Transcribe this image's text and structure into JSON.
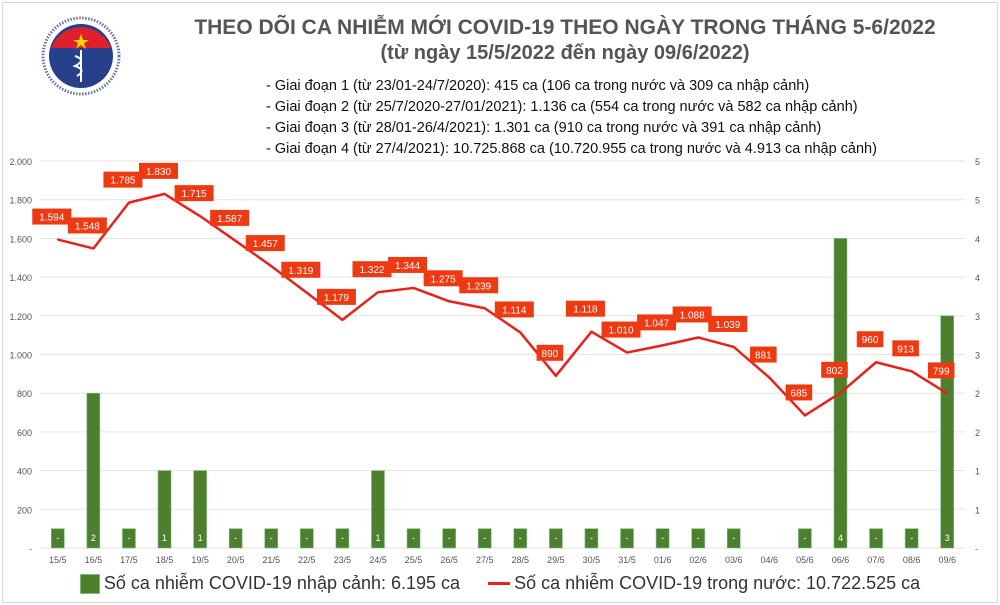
{
  "header": {
    "logo_text_top": "BỘ Y TẾ",
    "logo_text_bottom": "MINISTRY OF HEALTH",
    "title": "THEO DÕI CA NHIỄM MỚI COVID-19 THEO NGÀY TRONG THÁNG 5-6/2022",
    "subtitle": "(từ ngày 15/5/2022 đến ngày 09/6/2022)",
    "notes": [
      "- Giai đoạn 1 (từ 23/01-24/7/2020): 415 ca (106 ca trong nước và 309 ca nhập cảnh)",
      "- Giai đoạn 2 (từ 25/7/2020-27/01/2021): 1.136 ca (554 ca trong nước và 582 ca nhập cảnh)",
      "- Giai đoạn 3 (từ 28/01-26/4/2021): 1.301 ca (910 ca trong nước và 391 ca nhập cảnh)",
      "- Giai đoạn 4 (từ 27/4/2021): 10.725.868 ca (10.720.955 ca trong nước và 4.913 ca nhập cảnh)"
    ]
  },
  "chart_data": {
    "type": "bar+line",
    "categories": [
      "15/5",
      "16/5",
      "17/5",
      "18/5",
      "19/5",
      "20/5",
      "21/5",
      "22/5",
      "23/5",
      "24/5",
      "25/5",
      "26/5",
      "27/5",
      "28/5",
      "29/5",
      "30/5",
      "31/5",
      "01/6",
      "02/6",
      "03/6",
      "04/6",
      "05/6",
      "06/6",
      "07/6",
      "08/6",
      "09/6"
    ],
    "series": [
      {
        "name": "Số ca nhiễm COVID-19 nhập cảnh: 6.195 ca",
        "type": "bar",
        "axis": "right",
        "color": "#4e7f2e",
        "values": [
          0,
          2,
          0,
          1,
          1,
          0,
          0,
          0,
          0,
          1,
          0,
          0,
          0,
          0,
          0,
          0,
          0,
          0,
          0,
          0,
          null,
          0,
          4,
          0,
          0,
          3
        ],
        "labels": [
          "-",
          "2",
          "-",
          "1",
          "1",
          "-",
          "-",
          "-",
          "-",
          "1",
          "-",
          "-",
          "-",
          "-",
          "-",
          "-",
          "-",
          "-",
          "-",
          "-",
          "",
          "-",
          "4",
          "-",
          "-",
          "3"
        ]
      },
      {
        "name": "Số ca nhiễm COVID-19 trong nước: 10.722.525 ca",
        "type": "line",
        "axis": "left",
        "color": "#e8211b",
        "values": [
          1594,
          1548,
          1785,
          1830,
          1715,
          1587,
          1457,
          1319,
          1179,
          1322,
          1344,
          1275,
          1239,
          1114,
          890,
          1118,
          1010,
          1047,
          1088,
          1039,
          881,
          685,
          802,
          960,
          913,
          799
        ],
        "labels": [
          "1.594",
          "1.548",
          "1.785",
          "1.830",
          "1.715",
          "1.587",
          "1.457",
          "1.319",
          "1.179",
          "1.322",
          "1.344",
          "1.275",
          "1.239",
          "1.114",
          "890",
          "1.118",
          "1.010",
          "1.047",
          "1.088",
          "1.039",
          "881",
          "685",
          "802",
          "960",
          "913",
          "799"
        ]
      }
    ],
    "y_left": {
      "range": [
        0,
        2000
      ],
      "ticks": [
        "-",
        "200",
        "400",
        "600",
        "800",
        "1.000",
        "1.200",
        "1.400",
        "1.600",
        "1.800",
        "2.000"
      ]
    },
    "y_right": {
      "range": [
        0,
        5
      ],
      "ticks": [
        "-",
        "1",
        "1",
        "2",
        "2",
        "3",
        "3",
        "4",
        "4",
        "5",
        "5"
      ]
    },
    "grid": true,
    "legend": "bottom"
  }
}
